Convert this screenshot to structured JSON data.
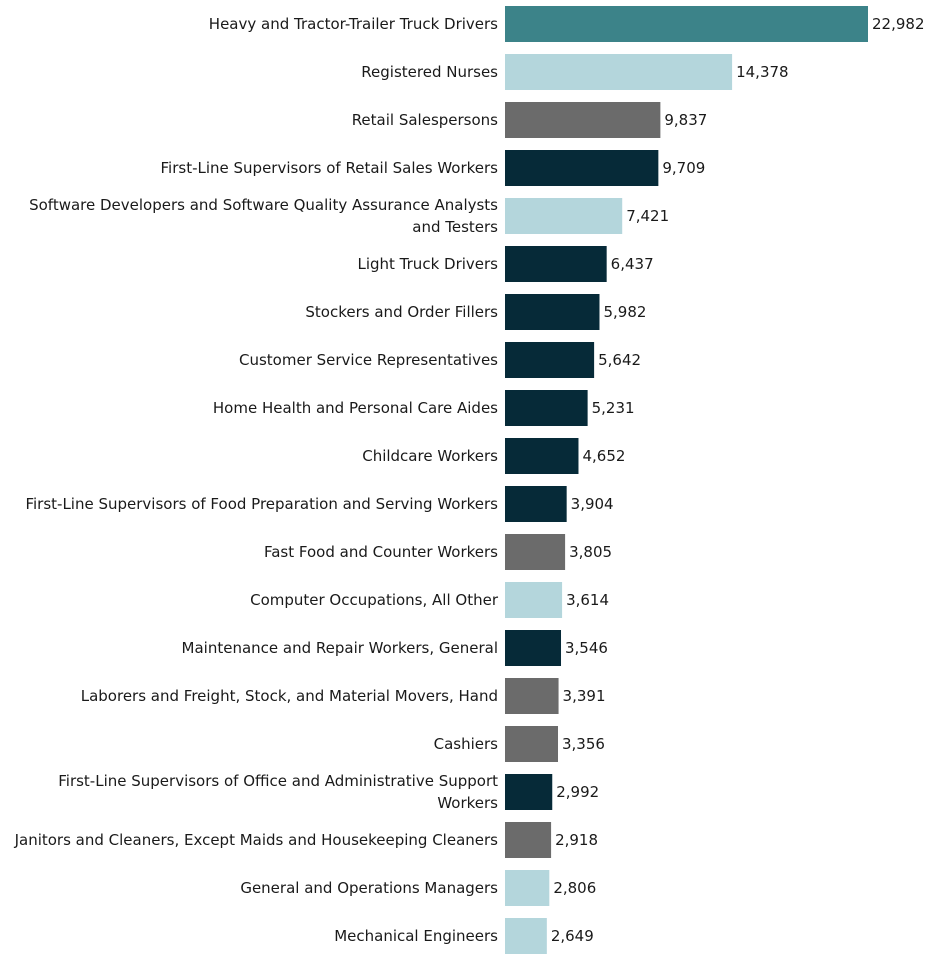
{
  "chart_data": {
    "type": "bar",
    "orientation": "horizontal",
    "title": "",
    "xlabel": "",
    "ylabel": "",
    "grid": false,
    "legend": "none",
    "xlim": [
      0,
      22982
    ],
    "categories": [
      [
        "Heavy and Tractor-Trailer Truck Drivers"
      ],
      [
        "Registered Nurses"
      ],
      [
        "Retail Salespersons"
      ],
      [
        "First-Line Supervisors of Retail Sales Workers"
      ],
      [
        "Software Developers and Software Quality Assurance Analysts",
        "and Testers"
      ],
      [
        "Light Truck Drivers"
      ],
      [
        "Stockers and Order Fillers"
      ],
      [
        "Customer Service Representatives"
      ],
      [
        "Home Health and Personal Care Aides"
      ],
      [
        "Childcare Workers"
      ],
      [
        "First-Line Supervisors of Food Preparation and Serving Workers"
      ],
      [
        "Fast Food and Counter Workers"
      ],
      [
        "Computer Occupations, All Other"
      ],
      [
        "Maintenance and Repair Workers, General"
      ],
      [
        "Laborers and Freight, Stock, and Material Movers, Hand"
      ],
      [
        "Cashiers"
      ],
      [
        "First-Line Supervisors of Office and Administrative Support",
        "Workers"
      ],
      [
        "Janitors and Cleaners, Except Maids and Housekeeping Cleaners"
      ],
      [
        "General and Operations Managers"
      ],
      [
        "Mechanical Engineers"
      ]
    ],
    "values": [
      22982,
      14378,
      9837,
      9709,
      7421,
      6437,
      5982,
      5642,
      5231,
      4652,
      3904,
      3805,
      3614,
      3546,
      3391,
      3356,
      2992,
      2918,
      2806,
      2649
    ],
    "value_labels": [
      "22,982",
      "14,378",
      "9,837",
      "9,709",
      "7,421",
      "6,437",
      "5,982",
      "5,642",
      "5,231",
      "4,652",
      "3,904",
      "3,805",
      "3,614",
      "3,546",
      "3,391",
      "3,356",
      "2,992",
      "2,918",
      "2,806",
      "2,649"
    ],
    "bar_colors": [
      "#3c8389",
      "#b4d6dc",
      "#6b6b6b",
      "#062a38",
      "#b4d6dc",
      "#062a38",
      "#062a38",
      "#062a38",
      "#062a38",
      "#062a38",
      "#062a38",
      "#6b6b6b",
      "#b4d6dc",
      "#062a38",
      "#6b6b6b",
      "#6b6b6b",
      "#062a38",
      "#6b6b6b",
      "#b4d6dc",
      "#b4d6dc"
    ]
  }
}
